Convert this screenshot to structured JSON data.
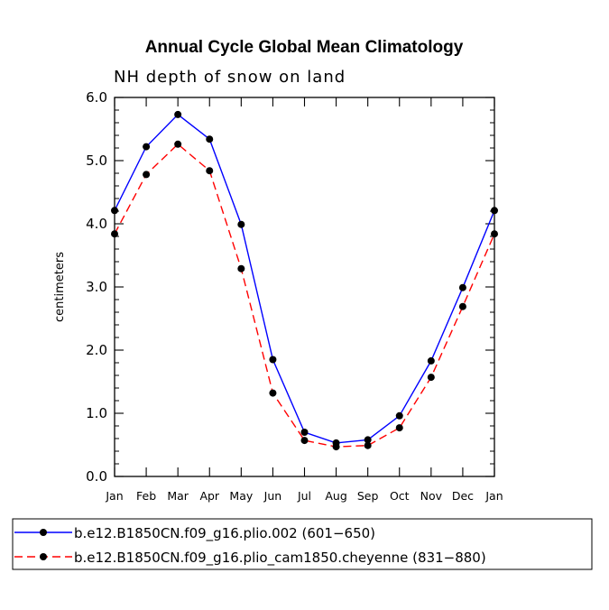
{
  "chart_data": {
    "type": "line",
    "title": "Annual Cycle Global Mean Climatology",
    "subtitle": "NH depth of snow on land",
    "xlabel": "",
    "ylabel": "centimeters",
    "categories": [
      "Jan",
      "Feb",
      "Mar",
      "Apr",
      "May",
      "Jun",
      "Jul",
      "Aug",
      "Sep",
      "Oct",
      "Nov",
      "Dec",
      "Jan"
    ],
    "yticks": [
      "0.0",
      "1.0",
      "2.0",
      "3.0",
      "4.0",
      "5.0",
      "6.0"
    ],
    "ylim": [
      0,
      6
    ],
    "grid": false,
    "legend_position": "bottom",
    "series": [
      {
        "name": "b.e12.B1850CN.f09_g16.plio.002 (601−650)",
        "color": "#0000ff",
        "style": "solid",
        "values": [
          4.21,
          5.22,
          5.73,
          5.34,
          3.99,
          1.85,
          0.7,
          0.53,
          0.58,
          0.96,
          1.83,
          2.99,
          4.21
        ]
      },
      {
        "name": "b.e12.B1850CN.f09_g16.plio_cam1850.cheyenne (831−880)",
        "color": "#ff0000",
        "style": "dashed",
        "values": [
          3.84,
          4.78,
          5.26,
          4.84,
          3.29,
          1.32,
          0.57,
          0.47,
          0.49,
          0.77,
          1.57,
          2.69,
          3.84
        ]
      }
    ]
  }
}
